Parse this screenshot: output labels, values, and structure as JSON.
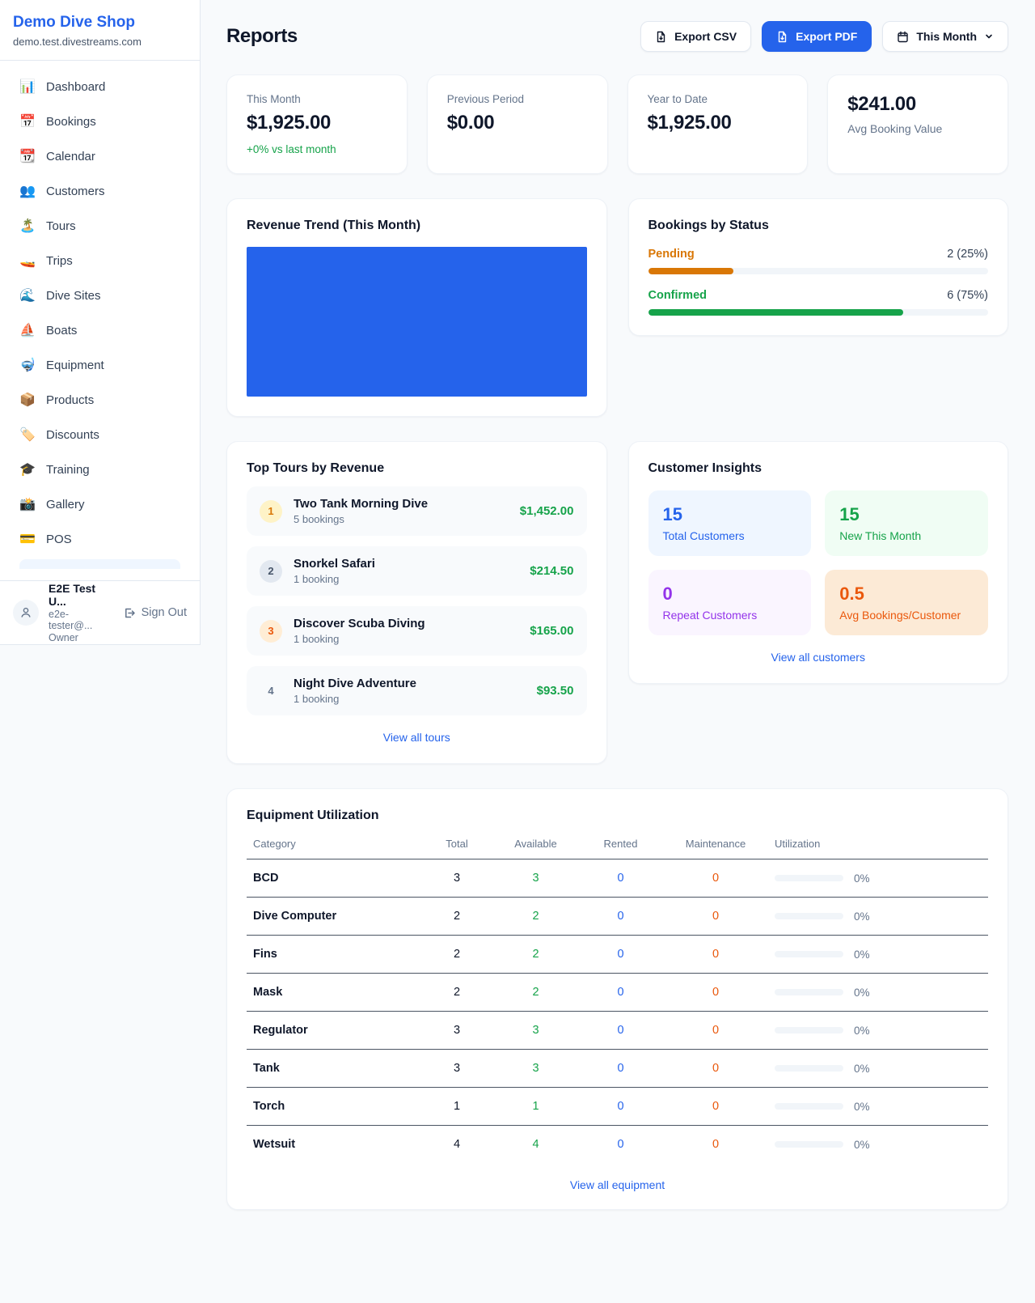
{
  "colors": {
    "accent_blue": "#2563eb",
    "green": "#16a34a",
    "amber": "#d97706",
    "orange": "#ea580c",
    "purple": "#9333ea",
    "page_bg": "#f8fafc"
  },
  "sidebar": {
    "title": "Demo Dive Shop",
    "domain": "demo.test.divestreams.com",
    "items": [
      {
        "icon": "📊",
        "label": "Dashboard"
      },
      {
        "icon": "📅",
        "label": "Bookings"
      },
      {
        "icon": "📆",
        "label": "Calendar"
      },
      {
        "icon": "👥",
        "label": "Customers"
      },
      {
        "icon": "🏝️",
        "label": "Tours"
      },
      {
        "icon": "🚤",
        "label": "Trips"
      },
      {
        "icon": "🌊",
        "label": "Dive Sites"
      },
      {
        "icon": "⛵",
        "label": "Boats"
      },
      {
        "icon": "🤿",
        "label": "Equipment"
      },
      {
        "icon": "📦",
        "label": "Products"
      },
      {
        "icon": "🏷️",
        "label": "Discounts"
      },
      {
        "icon": "🎓",
        "label": "Training"
      },
      {
        "icon": "📸",
        "label": "Gallery"
      },
      {
        "icon": "💳",
        "label": "POS"
      }
    ],
    "user": {
      "name": "E2E Test U...",
      "email": "e2e-tester@...",
      "role": "Owner",
      "sign_out_label": "Sign Out"
    }
  },
  "header": {
    "title": "Reports",
    "export_csv_label": "Export CSV",
    "export_pdf_label": "Export PDF",
    "period_label": "This Month"
  },
  "stats": [
    {
      "label": "This Month",
      "value": "$1,925.00",
      "delta": "+0% vs last month"
    },
    {
      "label": "Previous Period",
      "value": "$0.00"
    },
    {
      "label": "Year to Date",
      "value": "$1,925.00"
    },
    {
      "label": "Avg Booking Value",
      "value": "$241.00"
    }
  ],
  "revenue_trend": {
    "title": "Revenue Trend (This Month)",
    "chart_data": {
      "type": "bar",
      "bars_visible": 1,
      "fill_color": "#2563eb",
      "axis_labels_visible": false,
      "note": "single solid blue bar filling the entire plot area; no axes, ticks or labels rendered"
    }
  },
  "bookings_by_status": {
    "title": "Bookings by Status",
    "rows": [
      {
        "label": "Pending",
        "count": "2 (25%)",
        "pct": 25
      },
      {
        "label": "Confirmed",
        "count": "6 (75%)",
        "pct": 75
      }
    ]
  },
  "top_tours": {
    "title": "Top Tours by Revenue",
    "view_all": "View all tours",
    "rows": [
      {
        "rank": "1",
        "name": "Two Tank Morning Dive",
        "bookings": "5 bookings",
        "revenue": "$1,452.00"
      },
      {
        "rank": "2",
        "name": "Snorkel Safari",
        "bookings": "1 booking",
        "revenue": "$214.50"
      },
      {
        "rank": "3",
        "name": "Discover Scuba Diving",
        "bookings": "1 booking",
        "revenue": "$165.00"
      },
      {
        "rank": "4",
        "name": "Night Dive Adventure",
        "bookings": "1 booking",
        "revenue": "$93.50"
      }
    ]
  },
  "customer_insights": {
    "title": "Customer Insights",
    "view_all": "View all customers",
    "cards": [
      {
        "value": "15",
        "label": "Total Customers",
        "color": "#2563eb"
      },
      {
        "value": "15",
        "label": "New This Month",
        "color": "#16a34a"
      },
      {
        "value": "0",
        "label": "Repeat Customers",
        "color": "#9333ea"
      },
      {
        "value": "0.5",
        "label": "Avg Bookings/Customer",
        "color": "#ea580c"
      }
    ]
  },
  "equipment": {
    "title": "Equipment Utilization",
    "view_all": "View all equipment",
    "columns": [
      "Category",
      "Total",
      "Available",
      "Rented",
      "Maintenance",
      "Utilization"
    ],
    "rows": [
      {
        "category": "BCD",
        "total": "3",
        "available": "3",
        "rented": "0",
        "maintenance": "0",
        "utilization": "0%",
        "pct": 0
      },
      {
        "category": "Dive Computer",
        "total": "2",
        "available": "2",
        "rented": "0",
        "maintenance": "0",
        "utilization": "0%",
        "pct": 0
      },
      {
        "category": "Fins",
        "total": "2",
        "available": "2",
        "rented": "0",
        "maintenance": "0",
        "utilization": "0%",
        "pct": 0
      },
      {
        "category": "Mask",
        "total": "2",
        "available": "2",
        "rented": "0",
        "maintenance": "0",
        "utilization": "0%",
        "pct": 0
      },
      {
        "category": "Regulator",
        "total": "3",
        "available": "3",
        "rented": "0",
        "maintenance": "0",
        "utilization": "0%",
        "pct": 0
      },
      {
        "category": "Tank",
        "total": "3",
        "available": "3",
        "rented": "0",
        "maintenance": "0",
        "utilization": "0%",
        "pct": 0
      },
      {
        "category": "Torch",
        "total": "1",
        "available": "1",
        "rented": "0",
        "maintenance": "0",
        "utilization": "0%",
        "pct": 0
      },
      {
        "category": "Wetsuit",
        "total": "4",
        "available": "4",
        "rented": "0",
        "maintenance": "0",
        "utilization": "0%",
        "pct": 0
      }
    ]
  }
}
